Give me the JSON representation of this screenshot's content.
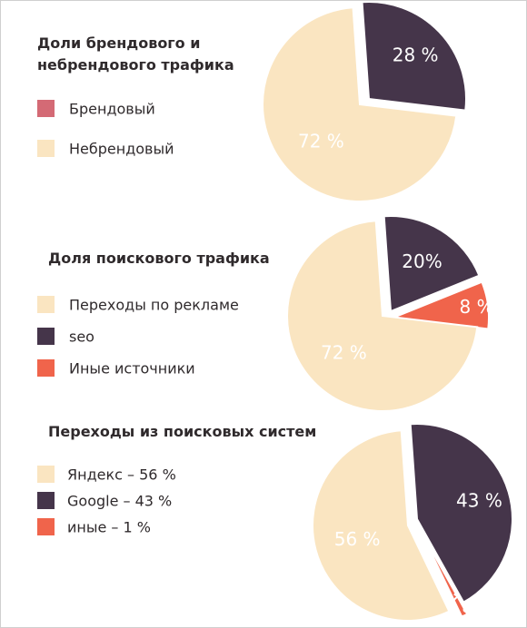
{
  "colors": {
    "light": "#fae5c1",
    "dark": "#45354a",
    "orange": "#f0644b",
    "pink": "#d46a75",
    "text_dark": "#2f2a2c",
    "label_light": "#ffffff"
  },
  "blocks": [
    {
      "title_lines": [
        "Доли брендового и",
        "небрендового трафика"
      ],
      "legend": [
        {
          "label": "Брендовый",
          "color": "#d46a75"
        },
        {
          "label": "Небрендовый",
          "color": "#fae5c1"
        }
      ]
    },
    {
      "title_lines": [
        "Доля поискового трафика"
      ],
      "legend": [
        {
          "label": "Переходы по рекламе",
          "color": "#fae5c1"
        },
        {
          "label": "seo",
          "color": "#45354a"
        },
        {
          "label": "Иные источники",
          "color": "#f0644b"
        }
      ]
    },
    {
      "title_lines": [
        "Переходы из поисковых систем"
      ],
      "legend": [
        {
          "label": "Яндекс – 56 %",
          "color": "#fae5c1"
        },
        {
          "label": "Google – 43 %",
          "color": "#45354a"
        },
        {
          "label": "иные – 1 %",
          "color": "#f0644b"
        }
      ]
    }
  ],
  "chart_data": [
    {
      "type": "pie",
      "title": "",
      "slices": [
        {
          "label": "28 %",
          "value": 28,
          "color": "#45354a",
          "exploded": true
        },
        {
          "label": "72 %",
          "value": 72,
          "color": "#fae5c1",
          "exploded": false
        }
      ]
    },
    {
      "type": "pie",
      "title": "",
      "slices": [
        {
          "label": "20%",
          "value": 20,
          "color": "#45354a",
          "exploded": true
        },
        {
          "label": "8 %",
          "value": 8,
          "color": "#f0644b",
          "exploded": true
        },
        {
          "label": "72 %",
          "value": 72,
          "color": "#fae5c1",
          "exploded": false
        }
      ]
    },
    {
      "type": "pie",
      "title": "",
      "slices": [
        {
          "label": "43 %",
          "value": 43,
          "color": "#45354a",
          "exploded": true
        },
        {
          "label": "1 %",
          "value": 1,
          "color": "#f0644b",
          "exploded": true
        },
        {
          "label": "56 %",
          "value": 56,
          "color": "#fae5c1",
          "exploded": false
        }
      ]
    }
  ]
}
